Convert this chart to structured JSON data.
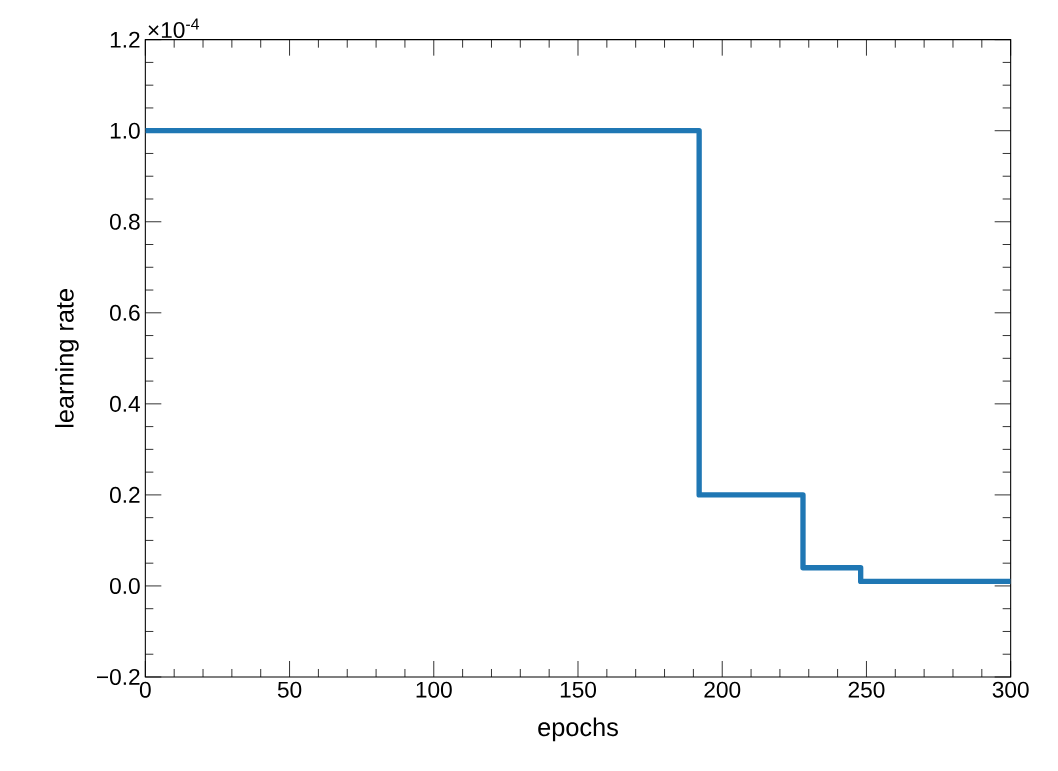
{
  "chart_data": {
    "type": "step",
    "xlabel": "epochs",
    "ylabel": "learning rate",
    "annotations": [
      "×10$^{-4}$"
    ],
    "x": [
      0,
      192,
      228,
      248,
      300
    ],
    "series": [
      {
        "color": "#1f77b4",
        "values": [
          1.0,
          0.2,
          0.04,
          0.01,
          0.01
        ]
      }
    ],
    "xlim": [
      0,
      300
    ],
    "xticks": [
      0,
      50,
      100,
      150,
      200,
      250,
      300
    ],
    "ylim": [
      -0.2,
      1.2
    ],
    "yticks": [
      {
        "value": -0.2,
        "label": "−0.2"
      },
      {
        "value": 0,
        "label": "0.0"
      },
      {
        "value": 0.2,
        "label": "0.2"
      },
      {
        "value": 0.4,
        "label": "0.4"
      },
      {
        "value": 0.6,
        "label": "0.6"
      },
      {
        "value": 0.8,
        "label": "0.8"
      },
      {
        "value": 1.0,
        "label": "1.0"
      },
      {
        "value": 1.2,
        "label": "1.2"
      }
    ],
    "grid": false
  }
}
